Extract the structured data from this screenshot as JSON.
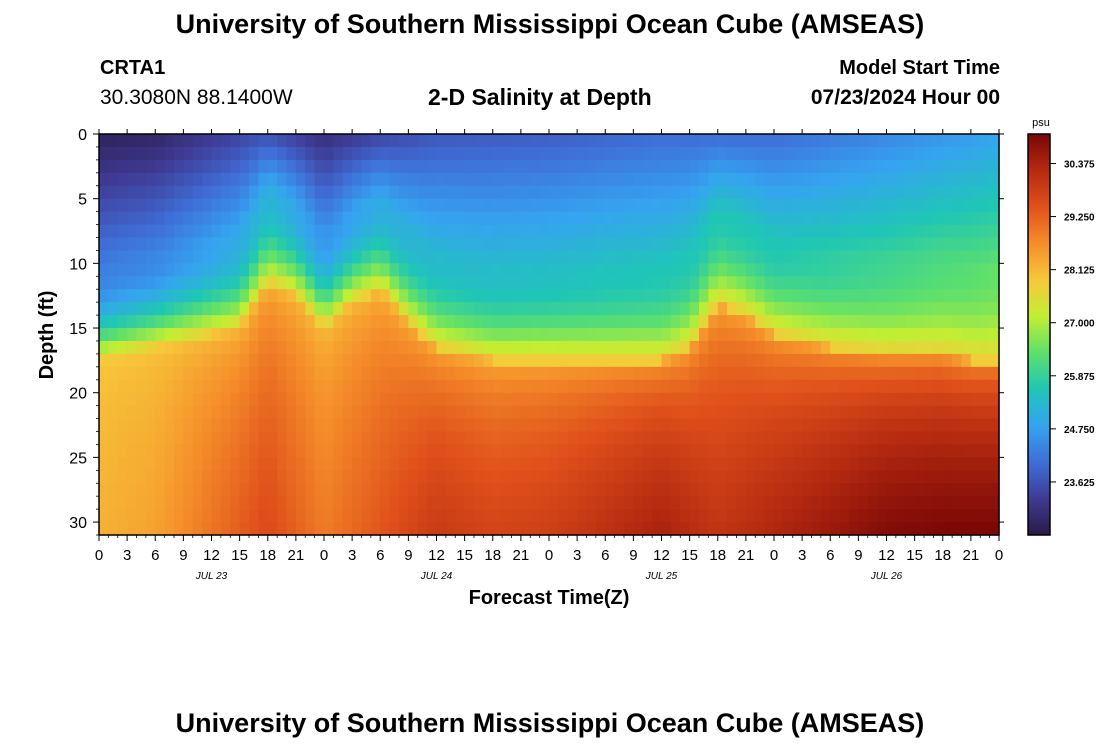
{
  "page": {
    "title": "University of Southern Mississippi Ocean Cube (AMSEAS)",
    "station": "CRTA1",
    "coordinates": "30.3080N  88.1400W",
    "subtitle": "2-D Salinity at Depth",
    "model_start_label": "Model Start Time",
    "model_start_value": "07/23/2024 Hour 00",
    "footer_title": "University of Southern Mississippi Ocean Cube (AMSEAS)"
  },
  "colors": {
    "background": "#ffffff",
    "axis": "#000000",
    "colormap": [
      "#2a1a45",
      "#3f3b95",
      "#3f6fd8",
      "#35a4f0",
      "#1fc6b6",
      "#5ee06b",
      "#c2ee33",
      "#f7c83a",
      "#f58d2a",
      "#e0511b",
      "#b52a10",
      "#7a0707"
    ]
  },
  "chart_data": {
    "type": "heatmap",
    "title": "2-D Salinity at Depth",
    "xlabel": "Forecast Time(Z)",
    "ylabel": "Depth (ft)",
    "x_unit": "hours since 07/23/2024 00Z",
    "xlim": [
      0,
      96
    ],
    "ylim": [
      0,
      31
    ],
    "y_inverted": true,
    "x_ticks": [
      0,
      3,
      6,
      9,
      12,
      15,
      18,
      21,
      24,
      27,
      30,
      33,
      36,
      39,
      42,
      45,
      48,
      51,
      54,
      57,
      60,
      63,
      66,
      69,
      72,
      75,
      78,
      81,
      84,
      87,
      90,
      93,
      96
    ],
    "x_tick_labels": [
      "0",
      "3",
      "6",
      "9",
      "12",
      "15",
      "18",
      "21",
      "0",
      "3",
      "6",
      "9",
      "12",
      "15",
      "18",
      "21",
      "0",
      "3",
      "6",
      "9",
      "12",
      "15",
      "18",
      "21",
      "0",
      "3",
      "6",
      "9",
      "12",
      "15",
      "18",
      "21",
      "0"
    ],
    "day_labels": [
      {
        "hour": 12,
        "label": "JUL 23"
      },
      {
        "hour": 36,
        "label": "JUL 24"
      },
      {
        "hour": 60,
        "label": "JUL 25"
      },
      {
        "hour": 84,
        "label": "JUL 26"
      }
    ],
    "y_ticks": [
      0,
      5,
      10,
      15,
      20,
      25,
      30
    ],
    "y_tick_labels": [
      "0",
      "5",
      "10",
      "15",
      "20",
      "25",
      "30"
    ],
    "colorbar": {
      "unit": "psu",
      "min": 22.5,
      "max": 31.0,
      "ticks": [
        30.375,
        29.25,
        28.125,
        27.0,
        25.875,
        24.75,
        23.625
      ],
      "tick_labels": [
        "30.375",
        "29.250",
        "28.125",
        "27.000",
        "25.875",
        "24.750",
        "23.625"
      ]
    },
    "halocline_depth_ft": {
      "hours": [
        0,
        6,
        12,
        15,
        18,
        21,
        24,
        27,
        30,
        33,
        36,
        42,
        48,
        54,
        60,
        63,
        66,
        69,
        72,
        78,
        84,
        87,
        90,
        93,
        96
      ],
      "depth": [
        17.5,
        16.5,
        15.5,
        15.0,
        11.5,
        12.5,
        15.0,
        13.0,
        12.0,
        14.5,
        16.5,
        17.5,
        17.5,
        17.5,
        17.5,
        16.5,
        13.0,
        14.0,
        15.5,
        16.5,
        17.0,
        17.0,
        17.0,
        17.5,
        17.5
      ]
    },
    "surface_salinity_psu": {
      "hours": [
        0,
        6,
        12,
        18,
        24,
        30,
        36,
        48,
        60,
        72,
        84,
        96
      ],
      "values": [
        22.7,
        22.8,
        23.2,
        23.6,
        23.0,
        23.4,
        23.7,
        23.8,
        24.0,
        24.0,
        24.4,
        24.8
      ]
    },
    "bottom_salinity_psu": {
      "hours": [
        0,
        6,
        12,
        18,
        24,
        30,
        36,
        42,
        48,
        54,
        60,
        66,
        72,
        78,
        84,
        90,
        96
      ],
      "values": [
        28.2,
        28.4,
        29.0,
        29.6,
        28.9,
        29.4,
        29.9,
        29.7,
        29.8,
        30.1,
        30.4,
        30.0,
        30.3,
        30.6,
        30.9,
        31.0,
        31.0
      ]
    }
  }
}
